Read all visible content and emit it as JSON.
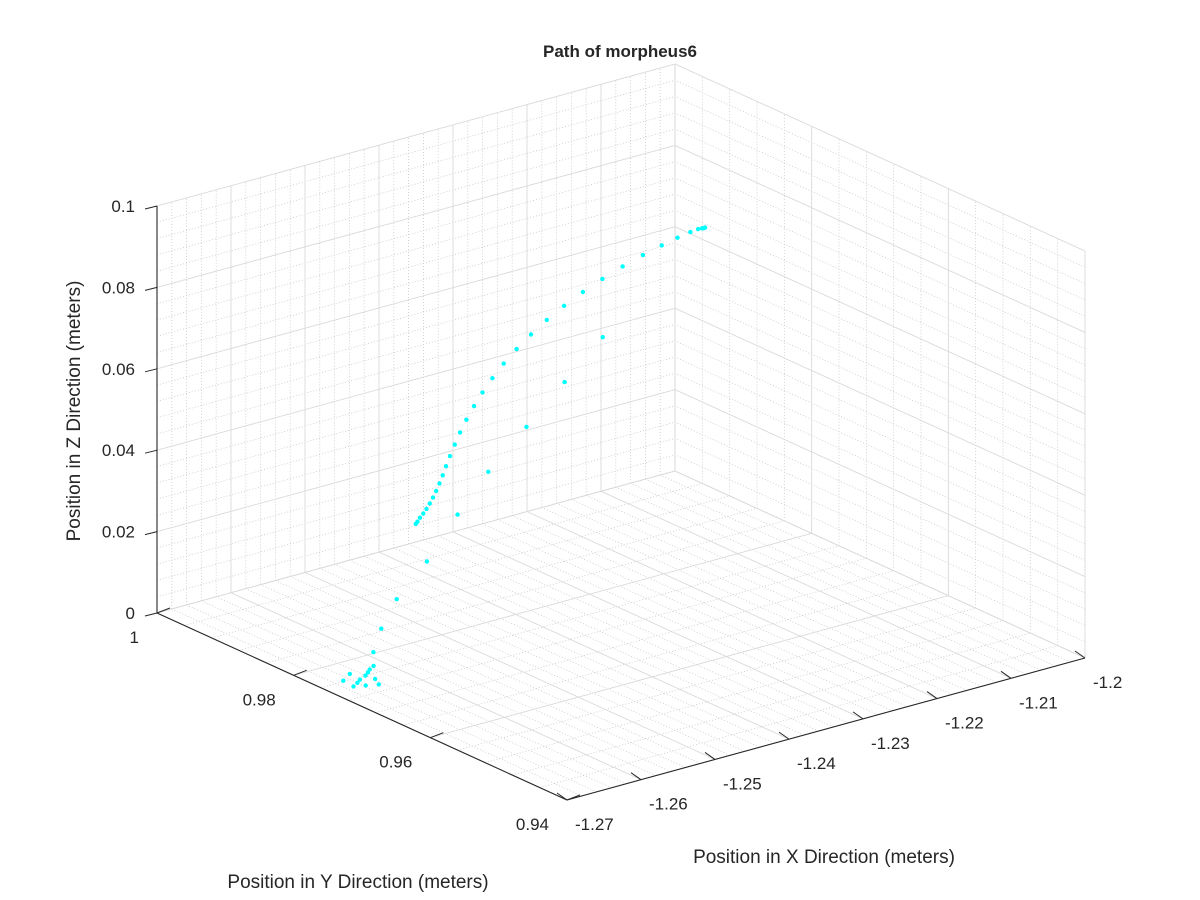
{
  "chart_data": {
    "type": "scatter",
    "title": "Path of morpheus6",
    "xlabel": "Position in X Direction (meters)",
    "ylabel": "Position in Y Direction (meters)",
    "zlabel": "Position in Z Direction (meters)",
    "xlim": [
      -1.27,
      -1.2
    ],
    "ylim": [
      0.94,
      1.0
    ],
    "zlim": [
      0,
      0.1
    ],
    "x_ticks": [
      "-1.27",
      "-1.26",
      "-1.25",
      "-1.24",
      "-1.23",
      "-1.22",
      "-1.21",
      "-1.2"
    ],
    "y_ticks": [
      "0.94",
      "0.96",
      "0.98",
      "1"
    ],
    "z_ticks": [
      "0",
      "0.02",
      "0.04",
      "0.06",
      "0.08",
      "0.1"
    ],
    "grid": true,
    "minor_grid": true,
    "marker_color": "#00FFFF",
    "series": [
      {
        "points": [
          [
            -1.2535,
            0.98,
            0.029
          ],
          [
            -1.2528,
            0.9805,
            0.0288
          ],
          [
            -1.252,
            0.981,
            0.029
          ],
          [
            -1.2511,
            0.9815,
            0.0292
          ],
          [
            -1.2502,
            0.982,
            0.0295
          ],
          [
            -1.2493,
            0.9825,
            0.03
          ],
          [
            -1.2484,
            0.983,
            0.0306
          ],
          [
            -1.2475,
            0.9835,
            0.0314
          ],
          [
            -1.2466,
            0.984,
            0.0324
          ],
          [
            -1.2457,
            0.9845,
            0.0336
          ],
          [
            -1.2448,
            0.985,
            0.035
          ],
          [
            -1.2438,
            0.9855,
            0.0366
          ],
          [
            -1.2427,
            0.986,
            0.0385
          ],
          [
            -1.2415,
            0.9865,
            0.0405
          ],
          [
            -1.2402,
            0.987,
            0.0426
          ],
          [
            -1.2387,
            0.9875,
            0.0448
          ],
          [
            -1.2371,
            0.988,
            0.047
          ],
          [
            -1.2353,
            0.9885,
            0.0492
          ],
          [
            -1.2333,
            0.989,
            0.0514
          ],
          [
            -1.2311,
            0.9895,
            0.0535
          ],
          [
            -1.2287,
            0.99,
            0.0555
          ],
          [
            -1.2261,
            0.9905,
            0.0574
          ],
          [
            -1.2233,
            0.991,
            0.0591
          ],
          [
            -1.2203,
            0.9915,
            0.0606
          ],
          [
            -1.2172,
            0.992,
            0.0619
          ],
          [
            -1.214,
            0.9925,
            0.063
          ],
          [
            -1.2108,
            0.993,
            0.0638
          ],
          [
            -1.2078,
            0.9935,
            0.0643
          ],
          [
            -1.2052,
            0.994,
            0.0645
          ],
          [
            -1.203,
            0.9945,
            0.0644
          ],
          [
            -1.2015,
            0.995,
            0.064
          ],
          [
            -1.2008,
            0.9952,
            0.0637
          ],
          [
            -1.2005,
            0.9953,
            0.0635
          ],
          [
            -1.2003,
            0.9954,
            0.0634
          ],
          [
            -1.2001,
            0.9955,
            0.0633
          ],
          [
            -1.219,
            0.99,
            0.05
          ],
          [
            -1.226,
            0.988,
            0.044
          ],
          [
            -1.233,
            0.986,
            0.038
          ],
          [
            -1.24,
            0.984,
            0.032
          ],
          [
            -1.246,
            0.982,
            0.026
          ],
          [
            -1.252,
            0.98,
            0.019
          ],
          [
            -1.257,
            0.979,
            0.013
          ],
          [
            -1.26,
            0.978,
            0.008
          ],
          [
            -1.262,
            0.977,
            0.004
          ],
          [
            -1.264,
            0.976,
            0.0
          ],
          [
            -1.2652,
            0.9755,
            0.0
          ],
          [
            -1.266,
            0.975,
            0.0
          ],
          [
            -1.267,
            0.9745,
            0.0
          ],
          [
            -1.2632,
            0.9765,
            0.0
          ],
          [
            -1.2625,
            0.977,
            0.0
          ],
          [
            -1.2645,
            0.9735,
            0.0
          ],
          [
            -1.2658,
            0.974,
            0.0
          ],
          [
            -1.2615,
            0.9775,
            0.0
          ],
          [
            -1.2668,
            0.9762,
            0.0
          ],
          [
            -1.2638,
            0.9748,
            0.0
          ],
          [
            -1.265,
            0.9772,
            0.0
          ]
        ]
      }
    ]
  }
}
